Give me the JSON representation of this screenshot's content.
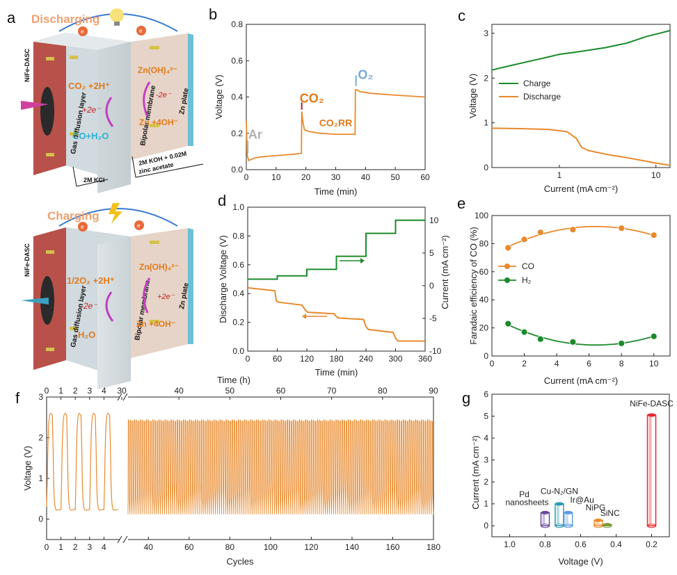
{
  "panels": {
    "a": "a",
    "b": "b",
    "c": "c",
    "d": "d",
    "e": "e",
    "f": "f",
    "g": "g"
  },
  "schematic": {
    "top": {
      "title": "Discharging",
      "electron": "e",
      "cathode": "NiFe-DASC",
      "gdl": "Gas diffusion layer",
      "membrane": "Bipolar membrane",
      "anode": "Zn plate",
      "reactant": "CO₂ +2H⁺",
      "electron_step": "+2e⁻",
      "product": "CO+H₂O",
      "zn_species": "Zn(OH)₄²⁻",
      "zn_step": "-2e⁻",
      "zn_reactant": "Zn +4OH⁻",
      "catholyte": "2M KCl",
      "anolyte_1": "2M KOH + 0.02M",
      "anolyte_2": "zinc acetate"
    },
    "bottom": {
      "title": "Charging",
      "electron": "e",
      "cathode": "NiFe-DASC",
      "gdl": "Gas diffusion layer",
      "membrane": "Bipolar membrane",
      "anode": "Zn plate",
      "product": "1/2O₂ +2H⁺",
      "electron_step": "-2e⁻",
      "reactant": "H₂O",
      "zn_species": "Zn(OH)₄²⁻",
      "zn_step": "+2e⁻",
      "zn_product": "Zn +4OH⁻"
    }
  },
  "colors": {
    "orange": "#e8892c",
    "green": "#1a8a2a",
    "red": "#e8242c",
    "purple": "#5a3a8c",
    "teal": "#2a8aa0",
    "grey_label": "#b0b0b0",
    "o2_label": "#7aa8d8",
    "co2_label": "#e07a1a"
  },
  "chart_data": [
    {
      "id": "b",
      "type": "line",
      "xlabel": "Time (min)",
      "ylabel": "Voltage (V)",
      "xlim": [
        0,
        60
      ],
      "ylim": [
        0,
        0.8
      ],
      "xticks": [
        0,
        10,
        20,
        30,
        40,
        50,
        60
      ],
      "yticks": [
        0.0,
        0.2,
        0.4,
        0.6,
        0.8
      ],
      "series": [
        {
          "color": "#e8892c",
          "x": [
            0,
            0.3,
            0.8,
            1.5,
            3,
            5,
            8,
            12,
            16,
            18.5,
            18.6,
            19,
            19.5,
            21,
            25,
            30,
            36.5,
            36.6,
            37,
            38,
            42,
            50,
            60
          ],
          "y": [
            0.27,
            0.08,
            0.05,
            0.055,
            0.065,
            0.07,
            0.075,
            0.08,
            0.085,
            0.09,
            0.32,
            0.26,
            0.22,
            0.21,
            0.2,
            0.195,
            0.195,
            0.44,
            0.44,
            0.43,
            0.42,
            0.41,
            0.4
          ]
        }
      ],
      "annotations": [
        {
          "text": "Ar",
          "x": 3,
          "y": 0.17,
          "color": "#b0b0b0"
        },
        {
          "text": "CO₂",
          "x": 22,
          "y": 0.37,
          "color": "#e07a1a"
        },
        {
          "text": "CO₂RR",
          "x": 30,
          "y": 0.24,
          "color": "#e07a1a"
        },
        {
          "text": "O₂",
          "x": 40,
          "y": 0.5,
          "color": "#7aa8d8"
        }
      ]
    },
    {
      "id": "c",
      "type": "line",
      "xlabel": "Current (mA cm⁻²)",
      "ylabel": "Voltage (V)",
      "xscale": "log",
      "xlim": [
        0.2,
        14
      ],
      "ylim": [
        0,
        3.2
      ],
      "xticks": [
        1,
        10
      ],
      "yticks": [
        0,
        1,
        2,
        3
      ],
      "legend": "center-left",
      "series": [
        {
          "name": "Charge",
          "color": "#1a8a2a",
          "x": [
            0.2,
            0.3,
            0.5,
            0.8,
            1,
            1.5,
            2,
            3,
            5,
            8,
            10,
            14
          ],
          "y": [
            2.18,
            2.27,
            2.38,
            2.48,
            2.53,
            2.58,
            2.62,
            2.68,
            2.78,
            2.93,
            2.98,
            3.06
          ]
        },
        {
          "name": "Discharge",
          "color": "#e8892c",
          "x": [
            0.2,
            0.4,
            0.8,
            1.2,
            1.5,
            1.7,
            2,
            3,
            5,
            8,
            10,
            14
          ],
          "y": [
            0.88,
            0.87,
            0.85,
            0.8,
            0.65,
            0.45,
            0.38,
            0.3,
            0.22,
            0.14,
            0.1,
            0.05
          ]
        }
      ]
    },
    {
      "id": "d",
      "type": "line",
      "xlabel": "Time (min)",
      "ylabel": "Discharge Voltage (V)",
      "y2label": "Current (mA cm⁻²)",
      "x2label": "Time (h)",
      "xlim": [
        0,
        360
      ],
      "ylim": [
        0,
        1.0
      ],
      "y2lim": [
        -10,
        12
      ],
      "xticks": [
        0,
        60,
        120,
        180,
        240,
        300,
        360
      ],
      "yticks": [
        0.0,
        0.2,
        0.4,
        0.6,
        0.8,
        1.0
      ],
      "y2ticks": [
        -10,
        -5,
        0,
        5,
        10
      ],
      "series": [
        {
          "name": "current",
          "axis": "right",
          "color": "#1a8a2a",
          "x": [
            0,
            60,
            60,
            120,
            120,
            180,
            180,
            240,
            240,
            300,
            300,
            360
          ],
          "y": [
            1,
            1,
            1.5,
            1.5,
            2.5,
            2.5,
            4.5,
            4.5,
            8,
            8,
            10,
            10
          ]
        },
        {
          "name": "voltage",
          "axis": "left",
          "color": "#e8892c",
          "x": [
            0,
            55,
            58,
            62,
            110,
            118,
            122,
            175,
            180,
            185,
            235,
            240,
            245,
            295,
            300,
            305,
            360
          ],
          "y": [
            0.44,
            0.42,
            0.35,
            0.34,
            0.32,
            0.28,
            0.27,
            0.26,
            0.24,
            0.23,
            0.22,
            0.17,
            0.15,
            0.13,
            0.09,
            0.07,
            0.07
          ]
        }
      ]
    },
    {
      "id": "e",
      "type": "scatter",
      "xlabel": "Current (mA cm⁻²)",
      "ylabel": "Faradaic efficiency of CO (%)",
      "xlim": [
        0,
        11
      ],
      "ylim": [
        0,
        100
      ],
      "xticks": [
        0,
        2,
        4,
        6,
        8,
        10
      ],
      "yticks": [
        0,
        20,
        40,
        60,
        80,
        100
      ],
      "legend": "center-left",
      "series": [
        {
          "name": "CO",
          "color": "#e8892c",
          "x": [
            1,
            2,
            3,
            5,
            8,
            10
          ],
          "y": [
            77,
            83,
            88,
            90,
            91,
            86
          ]
        },
        {
          "name": "H₂",
          "color": "#1a8a2a",
          "x": [
            1,
            2,
            3,
            5,
            8,
            10
          ],
          "y": [
            23,
            17,
            12,
            10,
            9,
            14
          ]
        }
      ]
    },
    {
      "id": "f",
      "type": "line",
      "xlabel": "Cycles",
      "ylabel": "Voltage (V)",
      "x2label": "Time (h)",
      "ylim": [
        -0.5,
        3
      ],
      "yticks": [
        0,
        1,
        2,
        3
      ],
      "xticks_left": [
        0,
        1,
        2,
        3,
        4
      ],
      "xticks_right": [
        40,
        60,
        80,
        100,
        120,
        140,
        160,
        180
      ],
      "x2ticks_left": [
        0,
        1,
        2,
        3,
        4,
        30
      ],
      "x2ticks_right": [
        40,
        50,
        60,
        70,
        80,
        90
      ],
      "segment1_cycles": [
        0,
        5
      ],
      "segment2_cycles": [
        30,
        180
      ],
      "charge_voltage": [
        2.6,
        2.45
      ],
      "discharge_voltage": [
        0.22,
        0.12
      ],
      "color": "#e8892c"
    },
    {
      "id": "g",
      "type": "bar",
      "xlabel": "Voltage (V)",
      "ylabel": "Current (mA cm⁻²)",
      "xlim": [
        1.1,
        0.1
      ],
      "ylim": [
        -0.5,
        6
      ],
      "xticks": [
        1.0,
        0.8,
        0.6,
        0.4,
        0.2
      ],
      "yticks": [
        0,
        1,
        2,
        3,
        4,
        5,
        6
      ],
      "bars": [
        {
          "label": "Pd nanosheets",
          "label_line1": "Pd",
          "label_line2": "nanosheets",
          "x": 0.8,
          "value": 0.6,
          "color": "#6a4a9c"
        },
        {
          "label": "Cu-N₂/GN",
          "x": 0.72,
          "value": 1.0,
          "color": "#2a9ab0"
        },
        {
          "label": "Ir@Au",
          "x": 0.67,
          "value": 0.6,
          "color": "#5a9ae0"
        },
        {
          "label": "NiPG",
          "x": 0.5,
          "value": 0.25,
          "color": "#f08a2a"
        },
        {
          "label": "SiNC",
          "x": 0.45,
          "value": 0.05,
          "color": "#7a9a3a"
        },
        {
          "label": "NiFe-DASC",
          "x": 0.2,
          "value": 5.05,
          "color": "#e8242c"
        }
      ]
    }
  ]
}
